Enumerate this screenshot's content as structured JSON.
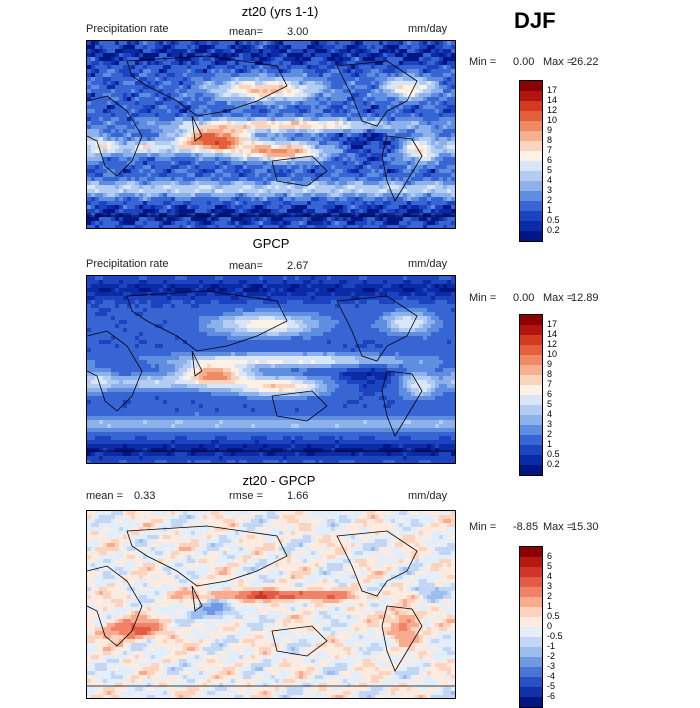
{
  "season": "DJF",
  "panels": [
    {
      "title": "zt20 (yrs 1-1)",
      "left_label": "Precipitation rate",
      "mean_label": "mean=",
      "mean_value": "3.00",
      "units": "mm/day",
      "min_label": "Min =",
      "min_value": "0.00",
      "max_label": "Max =",
      "max_value": "26.22",
      "colorbar": {
        "labels": [
          "17",
          "14",
          "12",
          "10",
          "9",
          "8",
          "7",
          "6",
          "5",
          "4",
          "3",
          "2",
          "1",
          "0.5",
          "0.2"
        ],
        "colors": [
          "#8b0000",
          "#b3140f",
          "#d33a1f",
          "#e3603a",
          "#ef8a62",
          "#f6b08f",
          "#fbd4bd",
          "#fdf0e4",
          "#d8e6f7",
          "#b3cdf2",
          "#8db1ea",
          "#5f8de0",
          "#3865d4",
          "#1c44c0",
          "#0a2aa6",
          "#001684"
        ]
      },
      "field_kind": "model"
    },
    {
      "title": "GPCP",
      "left_label": "Precipitation rate",
      "mean_label": "mean=",
      "mean_value": "2.67",
      "units": "mm/day",
      "min_label": "Min =",
      "min_value": "0.00",
      "max_label": "Max =",
      "max_value": "12.89",
      "colorbar": {
        "labels": [
          "17",
          "14",
          "12",
          "10",
          "9",
          "8",
          "7",
          "6",
          "5",
          "4",
          "3",
          "2",
          "1",
          "0.5",
          "0.2"
        ],
        "colors": [
          "#8b0000",
          "#b3140f",
          "#d33a1f",
          "#e3603a",
          "#ef8a62",
          "#f6b08f",
          "#fbd4bd",
          "#fdf0e4",
          "#d8e6f7",
          "#b3cdf2",
          "#8db1ea",
          "#5f8de0",
          "#3865d4",
          "#1c44c0",
          "#0a2aa6",
          "#001684"
        ]
      },
      "field_kind": "obs"
    },
    {
      "title": "zt20 - GPCP",
      "mean_label": "mean =",
      "mean_value": "0.33",
      "rmse_label": "rmse =",
      "rmse_value": "1.66",
      "units": "mm/day",
      "min_label": "Min =",
      "min_value": "-8.85",
      "max_label": "Max =",
      "max_value": "15.30",
      "colorbar": {
        "labels": [
          "6",
          "5",
          "4",
          "3",
          "2",
          "1",
          "0.5",
          "0",
          "-0.5",
          "-1",
          "-2",
          "-3",
          "-4",
          "-5",
          "-6"
        ],
        "colors": [
          "#8b0000",
          "#b31a12",
          "#d0352a",
          "#e35a45",
          "#f08367",
          "#f8ab8f",
          "#fcd3bd",
          "#fdebe0",
          "#e3eefb",
          "#c3d7f5",
          "#9dbdee",
          "#7199e3",
          "#4a74d6",
          "#2950c4",
          "#1230a8",
          "#00167f"
        ]
      },
      "field_kind": "diff"
    }
  ]
}
